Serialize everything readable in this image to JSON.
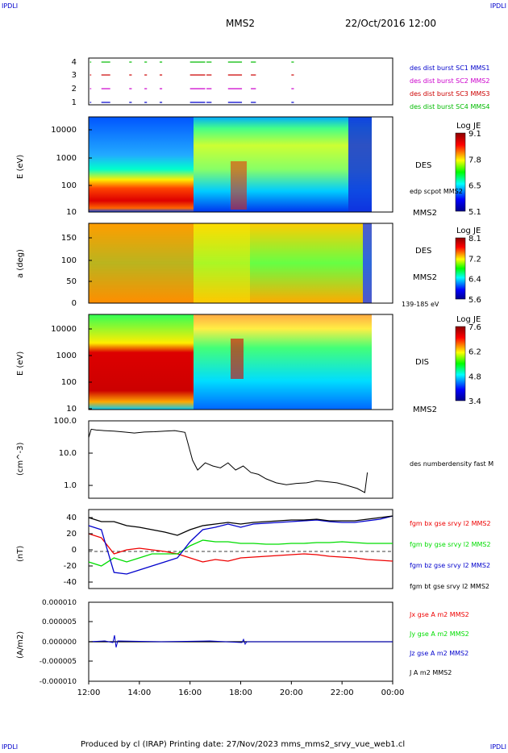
{
  "corner_labels": {
    "top_left": "IPDLI",
    "top_right": "IPDLI",
    "bottom_left": "IPDLI",
    "bottom_right": "IPDLI"
  },
  "header": {
    "spacecraft": "MMS2",
    "date": "22/Oct/2016 12:00"
  },
  "footer": {
    "text": "Produced by cl (IRAP)   Printing date: 27/Nov/2023   mms_mms2_srvy_vue_web1.cl"
  },
  "time_axis": {
    "ticks": [
      "12:00",
      "14:00",
      "16:00",
      "18:00",
      "20:00",
      "22:00",
      "00:00"
    ]
  },
  "colors": {
    "sc1": "#0000cc",
    "sc2": "#cc00cc",
    "sc3": "#cc0000",
    "sc4": "#00bb00",
    "bx": "#ee0000",
    "by": "#00dd00",
    "bz": "#0000cc",
    "bt": "#000000"
  },
  "chart_data": [
    {
      "type": "line",
      "panel": "burst",
      "yticks": [
        "4",
        "3",
        "2",
        "1"
      ],
      "series": [
        {
          "name": "des dist burst SC1 MMS1",
          "color": "#0000cc",
          "level": 1
        },
        {
          "name": "des dist burst SC2 MMS2",
          "color": "#cc00cc",
          "level": 2
        },
        {
          "name": "des dist burst SC3 MMS3",
          "color": "#cc0000",
          "level": 3
        },
        {
          "name": "des dist burst SC4 MMS4",
          "color": "#00bb00",
          "level": 4
        }
      ],
      "intervals_hours": [
        [
          12.05,
          12.1
        ],
        [
          12.5,
          12.85
        ],
        [
          13.6,
          13.7
        ],
        [
          14.2,
          14.3
        ],
        [
          14.8,
          14.9
        ],
        [
          16.0,
          16.6
        ],
        [
          16.65,
          16.85
        ],
        [
          17.5,
          18.05
        ],
        [
          18.4,
          18.6
        ],
        [
          20.0,
          20.1
        ]
      ]
    },
    {
      "type": "heatmap",
      "panel": "des-energy",
      "ylabel": "E (eV)",
      "yticks": [
        "10000",
        "1000",
        "100",
        "10"
      ],
      "colorbar": {
        "title": "Log JE",
        "ticks": [
          "9.1",
          "7.8",
          "6.5",
          "5.1"
        ]
      },
      "right_labels": [
        "DES",
        "edp scpot MMS2",
        "MMS2"
      ]
    },
    {
      "type": "heatmap",
      "panel": "des-pitch",
      "ylabel": "a (deg)",
      "yticks": [
        "150",
        "100",
        "50",
        "0"
      ],
      "colorbar": {
        "title": "Log JE",
        "ticks": [
          "8.1",
          "7.2",
          "6.4",
          "5.6"
        ]
      },
      "right_labels": [
        "DES",
        "MMS2",
        "139-185 eV"
      ]
    },
    {
      "type": "heatmap",
      "panel": "dis-energy",
      "ylabel": "E (eV)",
      "yticks": [
        "10000",
        "1000",
        "100",
        "10"
      ],
      "colorbar": {
        "title": "Log JE",
        "ticks": [
          "7.6",
          "6.2",
          "4.8",
          "3.4"
        ]
      },
      "right_labels": [
        "DIS",
        "MMS2"
      ]
    },
    {
      "type": "line",
      "panel": "density",
      "ylabel": "(cm^-3)",
      "yscale": "log",
      "ylim": [
        0.4,
        100
      ],
      "yticks": [
        "100.0",
        "10.0",
        "1.0"
      ],
      "series": [
        {
          "name": "des numberdensity fast M",
          "color": "#000000",
          "x": [
            12.0,
            12.1,
            12.3,
            12.6,
            13.0,
            13.4,
            13.8,
            14.2,
            14.6,
            15.0,
            15.4,
            15.8,
            16.1,
            16.3,
            16.6,
            16.9,
            17.2,
            17.5,
            17.8,
            18.1,
            18.4,
            18.7,
            19.0,
            19.4,
            19.8,
            20.2,
            20.6,
            21.0,
            21.4,
            21.8,
            22.2,
            22.6,
            22.9,
            23.0
          ],
          "y": [
            30,
            55,
            52,
            50,
            48,
            45,
            42,
            45,
            46,
            48,
            50,
            44,
            6,
            3,
            5,
            4,
            3.5,
            5,
            3,
            4,
            2.5,
            2.2,
            1.6,
            1.2,
            1.05,
            1.15,
            1.2,
            1.4,
            1.3,
            1.2,
            1.0,
            0.8,
            0.6,
            2.5
          ]
        }
      ]
    },
    {
      "type": "line",
      "panel": "magnetic",
      "ylabel": "(nT)",
      "ylim": [
        -48,
        50
      ],
      "yticks": [
        "40",
        "20",
        "0",
        "-20",
        "-40"
      ],
      "x": [
        12.0,
        12.5,
        13.0,
        13.5,
        14.0,
        14.5,
        15.0,
        15.5,
        16.0,
        16.5,
        17.0,
        17.5,
        18.0,
        18.5,
        19.0,
        19.5,
        20.0,
        20.5,
        21.0,
        21.5,
        22.0,
        22.5,
        23.0,
        23.5,
        24.0
      ],
      "series": [
        {
          "name": "fgm bx gse srvy l2 MMS2",
          "color": "#ee0000",
          "values": [
            20,
            15,
            -5,
            0,
            2,
            0,
            -2,
            -5,
            -10,
            -15,
            -12,
            -14,
            -10,
            -9,
            -8,
            -7,
            -6,
            -5,
            -6,
            -8,
            -9,
            -10,
            -12,
            -13,
            -14
          ]
        },
        {
          "name": "fgm by gse srvy l2 MMS2",
          "color": "#00dd00",
          "values": [
            -15,
            -20,
            -10,
            -15,
            -10,
            -5,
            -5,
            -5,
            5,
            12,
            10,
            10,
            8,
            8,
            7,
            7,
            8,
            8,
            9,
            9,
            10,
            9,
            8,
            8,
            8
          ]
        },
        {
          "name": "fgm bz gse srvy l2 MMS2",
          "color": "#0000cc",
          "values": [
            30,
            25,
            -28,
            -30,
            -25,
            -20,
            -15,
            -10,
            10,
            25,
            28,
            32,
            28,
            32,
            33,
            34,
            35,
            36,
            37,
            35,
            34,
            34,
            36,
            38,
            42
          ]
        },
        {
          "name": "fgm bt gse srvy l2 MMS2",
          "color": "#000000",
          "values": [
            40,
            35,
            35,
            30,
            28,
            25,
            22,
            18,
            25,
            30,
            32,
            34,
            32,
            34,
            35,
            36,
            37,
            37,
            38,
            36,
            36,
            36,
            38,
            40,
            42
          ]
        }
      ]
    },
    {
      "type": "line",
      "panel": "current",
      "ylabel": "(A/m2)",
      "ylim": [
        -0.0001,
        0.0001
      ],
      "yticks": [
        "0.000010",
        "0.000005",
        "0.000000",
        "-0.000005",
        "-0.000010"
      ],
      "series": [
        {
          "name": "Jx gse A m2 MMS2",
          "color": "#ee0000"
        },
        {
          "name": "Jy gse A m2 MMS2",
          "color": "#00dd00"
        },
        {
          "name": "Jz gse A m2 MMS2",
          "color": "#0000cc"
        },
        {
          "name": "J A m2 MMS2",
          "color": "#000000"
        }
      ]
    }
  ]
}
